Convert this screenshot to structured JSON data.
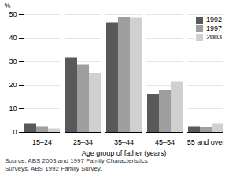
{
  "chart_data": {
    "type": "bar",
    "categories": [
      "15–24",
      "25–34",
      "35–44",
      "45–54",
      "55 and over"
    ],
    "series": [
      {
        "name": "1992",
        "color": "#595959",
        "values": [
          3.5,
          31.5,
          46.5,
          16.0,
          2.5
        ]
      },
      {
        "name": "1997",
        "color": "#9e9e9e",
        "values": [
          2.5,
          28.5,
          49.0,
          18.0,
          2.0
        ]
      },
      {
        "name": "2003",
        "color": "#d0d0d0",
        "values": [
          1.5,
          25.0,
          48.5,
          21.5,
          3.5
        ]
      }
    ],
    "xlabel": "Age group of father (years)",
    "ylabel": "%",
    "ylim": [
      0,
      50
    ],
    "yticks": [
      0,
      10,
      20,
      30,
      40,
      50
    ],
    "grid": true,
    "legend": "upper right",
    "caption": "Source: ABS 2003 and 1997 Family Characteristics\nSurveys, ABS 1992 Family Survey."
  }
}
